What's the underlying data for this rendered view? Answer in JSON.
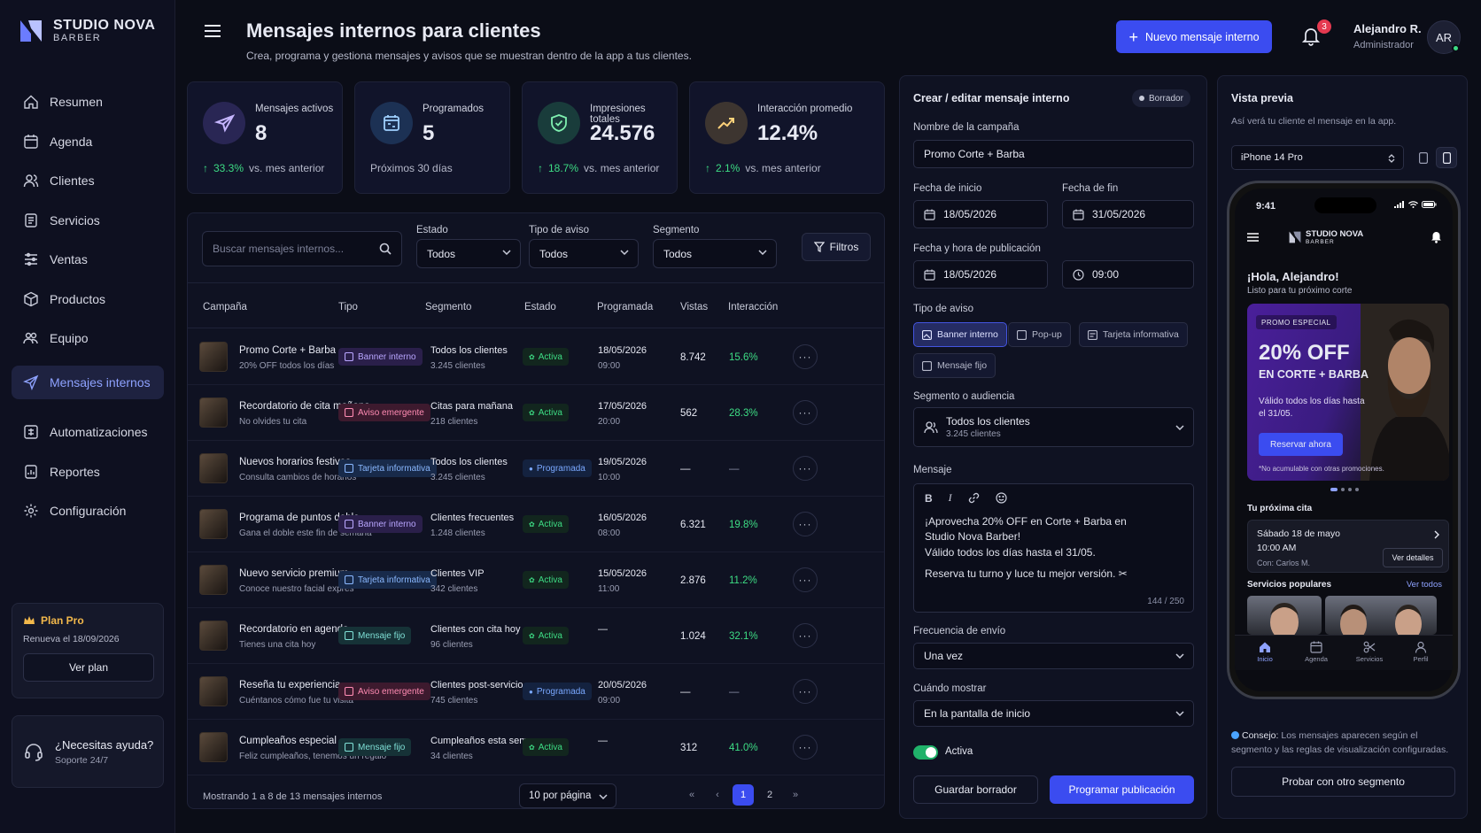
{
  "brand": {
    "name": "STUDIO NOVA",
    "sub": "BARBER"
  },
  "nav": [
    {
      "label": "Resumen",
      "icon": "home-icon"
    },
    {
      "label": "Agenda",
      "icon": "calendar-icon"
    },
    {
      "label": "Clientes",
      "icon": "users-icon"
    },
    {
      "label": "Servicios",
      "icon": "scissors-icon"
    },
    {
      "label": "Ventas",
      "icon": "sales-icon"
    },
    {
      "label": "Productos",
      "icon": "box-icon"
    },
    {
      "label": "Equipo",
      "icon": "team-icon"
    },
    {
      "label": "Mensajes internos",
      "icon": "send-icon",
      "active": true
    },
    {
      "label": "Automatizaciones",
      "icon": "automation-icon"
    },
    {
      "label": "Reportes",
      "icon": "report-icon"
    },
    {
      "label": "Configuración",
      "icon": "gear-icon"
    }
  ],
  "plan": {
    "title": "Plan Pro",
    "renew": "Renueva el 18/09/2026",
    "button": "Ver plan"
  },
  "help": {
    "title": "¿Necesitas ayuda?",
    "sub": "Soporte 24/7"
  },
  "header": {
    "title": "Mensajes internos para clientes",
    "subtitle": "Crea, programa y gestiona mensajes y avisos que se muestran dentro de la app a tus clientes.",
    "new_button": "Nuevo mensaje interno",
    "notifications": "3",
    "user_name": "Alejandro R.",
    "user_role": "Administrador",
    "avatar": "AR"
  },
  "stats": [
    {
      "label": "Mensajes activos",
      "value": "8",
      "delta": "33.3%",
      "foot": "vs. mes anterior",
      "color": "#8b6cff"
    },
    {
      "label": "Programados",
      "value": "5",
      "delta": "",
      "foot": "Próximos 30 días",
      "color": "#4aa3ff"
    },
    {
      "label": "Impresiones totales",
      "value": "24.576",
      "delta": "18.7%",
      "foot": "vs. mes anterior",
      "color": "#3ddc84"
    },
    {
      "label": "Interacción promedio",
      "value": "12.4%",
      "delta": "2.1%",
      "foot": "vs. mes anterior",
      "color": "#f2b84b"
    }
  ],
  "filters": {
    "search_placeholder": "Buscar mensajes internos...",
    "estado_label": "Estado",
    "estado_value": "Todos",
    "tipo_label": "Tipo de aviso",
    "tipo_value": "Todos",
    "segmento_label": "Segmento",
    "segmento_value": "Todos",
    "filtros_button": "Filtros"
  },
  "table": {
    "headers": [
      "Campaña",
      "Tipo",
      "Segmento",
      "Estado",
      "Programada",
      "Vistas",
      "Interacción"
    ],
    "rows": [
      {
        "name": "Promo Corte + Barba",
        "sub": "20% OFF todos los días",
        "type": "Banner interno",
        "type_class": "banner",
        "segment": "Todos los clientes",
        "segment_sub": "3.245 clientes",
        "status": "Activa",
        "status_class": "activa",
        "date": "18/05/2026",
        "time": "09:00",
        "views": "8.742",
        "interaction": "15.6%"
      },
      {
        "name": "Recordatorio de cita mañana",
        "sub": "No olvides tu cita",
        "type": "Aviso emergente",
        "type_class": "aviso",
        "segment": "Citas para mañana",
        "segment_sub": "218 clientes",
        "status": "Activa",
        "status_class": "activa",
        "date": "17/05/2026",
        "time": "20:00",
        "views": "562",
        "interaction": "28.3%"
      },
      {
        "name": "Nuevos horarios festivos",
        "sub": "Consulta cambios de horarios",
        "type": "Tarjeta informativa",
        "type_class": "tarjeta",
        "segment": "Todos los clientes",
        "segment_sub": "3.245 clientes",
        "status": "Programada",
        "status_class": "prog",
        "date": "19/05/2026",
        "time": "10:00",
        "views": "—",
        "interaction": "—"
      },
      {
        "name": "Programa de puntos doble",
        "sub": "Gana el doble este fin de semana",
        "type": "Banner interno",
        "type_class": "banner",
        "segment": "Clientes frecuentes",
        "segment_sub": "1.248 clientes",
        "status": "Activa",
        "status_class": "activa",
        "date": "16/05/2026",
        "time": "08:00",
        "views": "6.321",
        "interaction": "19.8%"
      },
      {
        "name": "Nuevo servicio premium",
        "sub": "Conoce nuestro facial exprés",
        "type": "Tarjeta informativa",
        "type_class": "tarjeta",
        "segment": "Clientes VIP",
        "segment_sub": "342 clientes",
        "status": "Activa",
        "status_class": "activa",
        "date": "15/05/2026",
        "time": "11:00",
        "views": "2.876",
        "interaction": "11.2%"
      },
      {
        "name": "Recordatorio en agenda",
        "sub": "Tienes una cita hoy",
        "type": "Mensaje fijo",
        "type_class": "fijo",
        "segment": "Clientes con cita hoy",
        "segment_sub": "96 clientes",
        "status": "Activa",
        "status_class": "activa",
        "date": "—",
        "time": "",
        "views": "1.024",
        "interaction": "32.1%"
      },
      {
        "name": "Reseña tu experiencia",
        "sub": "Cuéntanos cómo fue tu visita",
        "type": "Aviso emergente",
        "type_class": "aviso",
        "segment": "Clientes post-servicio",
        "segment_sub": "745 clientes",
        "status": "Programada",
        "status_class": "prog",
        "date": "20/05/2026",
        "time": "09:00",
        "views": "—",
        "interaction": "—"
      },
      {
        "name": "Cumpleaños especial",
        "sub": "Feliz cumpleaños, tenemos un regalo",
        "type": "Mensaje fijo",
        "type_class": "fijo",
        "segment": "Cumpleaños esta semana",
        "segment_sub": "34 clientes",
        "status": "Activa",
        "status_class": "activa",
        "date": "—",
        "time": "",
        "views": "312",
        "interaction": "41.0%"
      }
    ],
    "footer_text": "Mostrando 1 a 8 de 13 mensajes internos",
    "per_page": "10 por página",
    "pages": [
      "1",
      "2"
    ],
    "current_page": "1"
  },
  "editor": {
    "title": "Crear / editar mensaje interno",
    "badge": "Borrador",
    "campaign_label": "Nombre de la campaña",
    "campaign_value": "Promo Corte + Barba",
    "start_label": "Fecha de inicio",
    "start_value": "18/05/2026",
    "end_label": "Fecha de fin",
    "end_value": "31/05/2026",
    "pub_label": "Fecha y hora de publicación",
    "pub_date": "18/05/2026",
    "pub_time": "09:00",
    "type_label": "Tipo de aviso",
    "types": [
      "Banner interno",
      "Pop-up",
      "Tarjeta informativa",
      "Mensaje fijo"
    ],
    "segment_label": "Segmento o audiencia",
    "segment_value": "Todos los clientes",
    "segment_sub": "3.245 clientes",
    "message_label": "Mensaje",
    "message_lines": [
      "¡Aprovecha 20% OFF en Corte + Barba en",
      "Studio Nova Barber!",
      "Válido todos los días hasta el 31/05.",
      "Reserva tu turno y luce tu mejor versión. ✂"
    ],
    "counter": "144 / 250",
    "freq_label": "Frecuencia de envío",
    "freq_value": "Una vez",
    "when_label": "Cuándo mostrar",
    "when_value": "En la pantalla de inicio",
    "active_label": "Activa",
    "save_button": "Guardar borrador",
    "publish_button": "Programar publicación"
  },
  "preview": {
    "title": "Vista previa",
    "subtitle": "Así verá tu cliente el mensaje en la app.",
    "device": "iPhone 14 Pro",
    "phone": {
      "time": "9:41",
      "brand": "STUDIO NOVA",
      "brand_sub": "BARBER",
      "hello": "¡Hola, Alejandro!",
      "hello_sub": "Listo para tu próximo corte",
      "promo_tag": "PROMO ESPECIAL",
      "promo_big": "20% OFF",
      "promo_mid": "EN CORTE + BARBA",
      "promo_small": "Válido todos los días hasta el 31/05.",
      "promo_button": "Reservar ahora",
      "promo_note": "*No acumulable con otras promociones.",
      "next_label": "Tu próxima cita",
      "next_date": "Sábado 18 de mayo",
      "next_time": "10:00 AM",
      "next_with": "Con: Carlos M.",
      "next_button": "Ver detalles",
      "popular_label": "Servicios populares",
      "popular_all": "Ver todos",
      "tabs": [
        "Inicio",
        "Agenda",
        "Servicios",
        "Perfil"
      ]
    },
    "tip_strong": "Consejo:",
    "tip_text": " Los mensajes aparecen según el segmento y las reglas de visualización configuradas.",
    "try_button": "Probar con otro segmento"
  }
}
